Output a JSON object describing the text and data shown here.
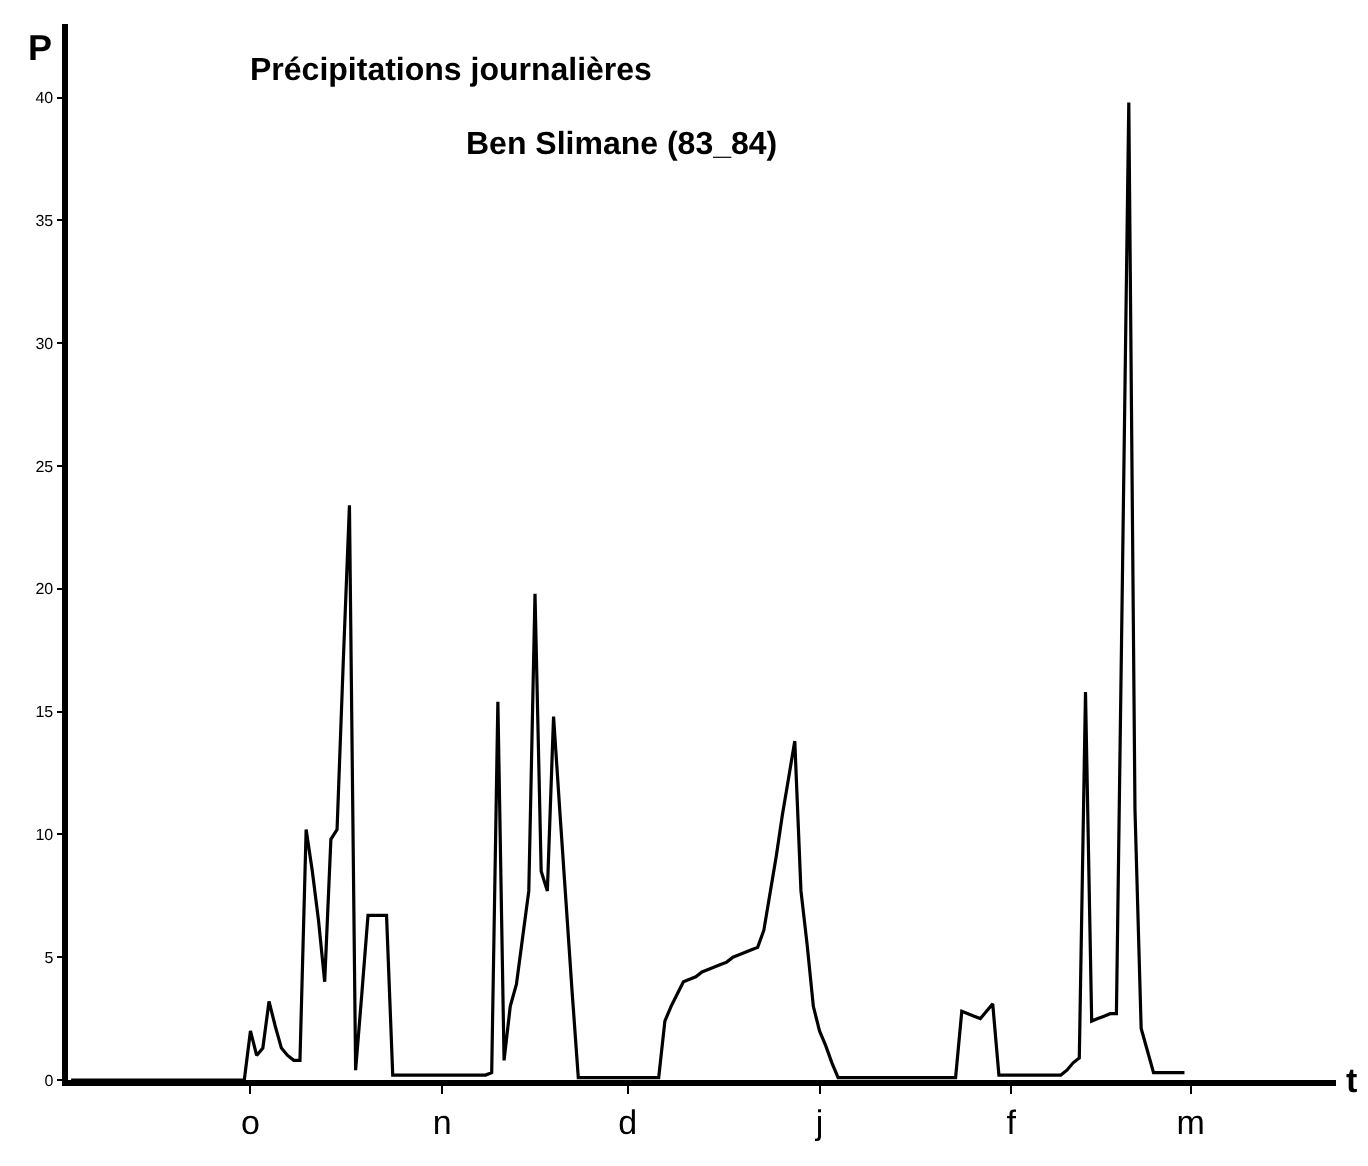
{
  "chart_data": {
    "type": "line",
    "title": "Précipitations journalières",
    "subtitle": "Ben Slimane (83_84)",
    "xlabel": "t",
    "ylabel": "P",
    "categories": [
      null,
      null,
      null,
      null,
      null,
      null,
      null,
      null,
      null,
      null,
      null,
      null,
      null,
      null,
      null,
      null,
      null,
      null,
      null,
      null,
      null,
      null,
      null,
      null,
      null,
      null,
      null,
      null,
      null,
      "o",
      null,
      null,
      null,
      null,
      null,
      null,
      null,
      null,
      null,
      null,
      null,
      null,
      null,
      null,
      null,
      null,
      null,
      null,
      null,
      null,
      null,
      null,
      null,
      null,
      null,
      null,
      null,
      null,
      null,
      null,
      "n",
      null,
      null,
      null,
      null,
      null,
      null,
      null,
      null,
      null,
      null,
      null,
      null,
      null,
      null,
      null,
      null,
      null,
      null,
      null,
      null,
      null,
      null,
      null,
      null,
      null,
      null,
      null,
      null,
      null,
      "d",
      null,
      null,
      null,
      null,
      null,
      null,
      null,
      null,
      null,
      null,
      null,
      null,
      null,
      null,
      null,
      null,
      null,
      null,
      null,
      null,
      null,
      null,
      null,
      null,
      null,
      null,
      null,
      null,
      null,
      null,
      "j",
      null,
      null,
      null,
      null,
      null,
      null,
      null,
      null,
      null,
      null,
      null,
      null,
      null,
      null,
      null,
      null,
      null,
      null,
      null,
      null,
      null,
      null,
      null,
      null,
      null,
      null,
      null,
      null,
      null,
      null,
      "f",
      null,
      null,
      null,
      null,
      null,
      null,
      null,
      null,
      null,
      null,
      null,
      null,
      null,
      null,
      null,
      null,
      null,
      null,
      null,
      null,
      null,
      null,
      null,
      null,
      null,
      null,
      null,
      null,
      "m",
      null,
      null,
      null,
      null,
      null,
      null,
      null,
      null,
      null,
      null,
      null,
      null,
      null,
      null,
      null,
      null,
      null,
      null,
      null,
      null,
      null,
      null,
      null
    ],
    "values": [
      0,
      0,
      0,
      0,
      0,
      0,
      0,
      0,
      0,
      0,
      0,
      0,
      0,
      0,
      0,
      0,
      0,
      0,
      0,
      0,
      0,
      0,
      0,
      0,
      0,
      0,
      0,
      0,
      0,
      2,
      1,
      1.3,
      3.2,
      2.2,
      1.3,
      1,
      0.8,
      0.8,
      10.2,
      8.5,
      6.5,
      4,
      9.8,
      10.2,
      17,
      23.4,
      0.4,
      3.5,
      6.7,
      6.7,
      6.7,
      6.7,
      0.2,
      0.2,
      0.2,
      0.2,
      0.2,
      0.2,
      0.2,
      0.2,
      0.2,
      0.2,
      0.2,
      0.2,
      0.2,
      0.2,
      0.2,
      0.2,
      0.3,
      15.4,
      0.8,
      3,
      3.9,
      5.8,
      7.7,
      19.8,
      8.5,
      7.7,
      14.8,
      11,
      7.3,
      3.6,
      0.1,
      0.1,
      0.1,
      0.1,
      0.1,
      0.1,
      0.1,
      0.1,
      0.1,
      0.1,
      0.1,
      0.1,
      0.1,
      0.1,
      2.4,
      3,
      3.5,
      4,
      4.1,
      4.2,
      4.4,
      4.5,
      4.6,
      4.7,
      4.8,
      5,
      5.1,
      5.2,
      5.3,
      5.4,
      6.1,
      7.6,
      9.1,
      10.8,
      12.3,
      13.8,
      7.7,
      5.5,
      3,
      2,
      1.4,
      0.7,
      0.1,
      0.1,
      0.1,
      0.1,
      0.1,
      0.1,
      0.1,
      0.1,
      0.1,
      0.1,
      0.1,
      0.1,
      0.1,
      0.1,
      0.1,
      0.1,
      0.1,
      0.1,
      0.1,
      0.1,
      2.8,
      2.7,
      2.6,
      2.5,
      2.8,
      3.1,
      0.2,
      0.2,
      0.2,
      0.2,
      0.2,
      0.2,
      0.2,
      0.2,
      0.2,
      0.2,
      0.2,
      0.4,
      0.7,
      0.9,
      15.8,
      2.4,
      2.5,
      2.6,
      2.7,
      2.7,
      21,
      39.8,
      11,
      2.1,
      1.2,
      0.3,
      0.3,
      0.3,
      0.3,
      0.3,
      0.3,
      null,
      null,
      null,
      null,
      null,
      null,
      null,
      null,
      null,
      null,
      null,
      null,
      null,
      null,
      null,
      null,
      null,
      null,
      null,
      null,
      null,
      null,
      null,
      null
    ],
    "color": "#000000",
    "ylim": [
      0,
      43
    ],
    "yticks": [
      0,
      5,
      10,
      15,
      20,
      25,
      30,
      35,
      40
    ]
  }
}
